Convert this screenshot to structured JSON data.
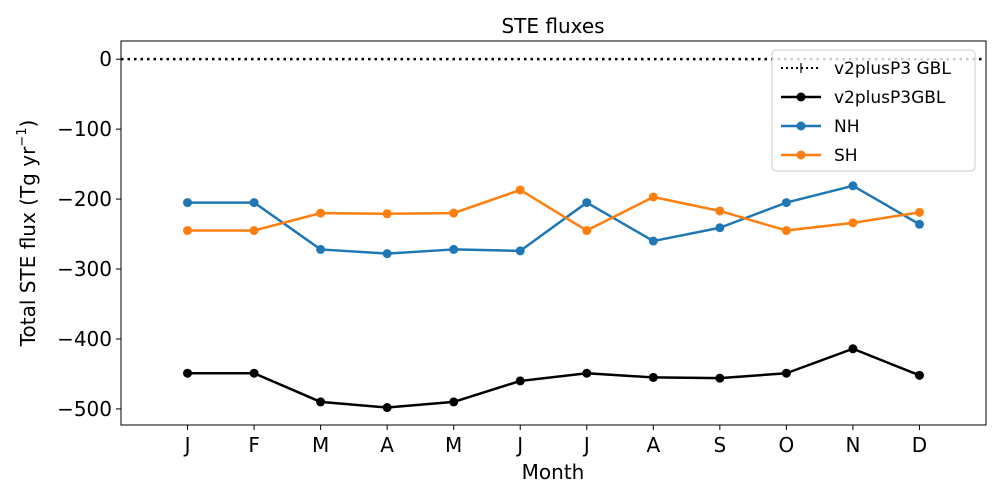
{
  "chart_data": {
    "type": "line",
    "title": "STE fluxes",
    "xlabel": "Month",
    "ylabel_prefix": "Total STE flux (Tg yr",
    "ylabel_exp": "−1",
    "ylabel_suffix": ")",
    "categories": [
      "J",
      "F",
      "M",
      "A",
      "M",
      "J",
      "J",
      "A",
      "S",
      "O",
      "N",
      "D"
    ],
    "xlim": [
      -1,
      12
    ],
    "ylim": [
      -523,
      26
    ],
    "yticks": [
      0,
      -100,
      -200,
      -300,
      -400,
      -500
    ],
    "ytick_labels": [
      "0",
      "−100",
      "−200",
      "−300",
      "−400",
      "−500"
    ],
    "grid": false,
    "legend_position": "top-right",
    "reference_line": {
      "name": "v2plusP3 GBL",
      "value": 0,
      "color": "#000000",
      "style": "dotted"
    },
    "series": [
      {
        "name": "v2plusP3GBL",
        "color": "#000000",
        "values": [
          -449,
          -449,
          -490,
          -498,
          -490,
          -460,
          -449,
          -455,
          -456,
          -449,
          -414,
          -452
        ]
      },
      {
        "name": "NH",
        "color": "#1f77b4",
        "values": [
          -205,
          -205,
          -272,
          -278,
          -272,
          -274,
          -205,
          -260,
          -241,
          -205,
          -181,
          -236
        ]
      },
      {
        "name": "SH",
        "color": "#ff7f0e",
        "values": [
          -245,
          -245,
          -220,
          -221,
          -220,
          -187,
          -245,
          -197,
          -217,
          -245,
          -234,
          -219
        ]
      }
    ]
  }
}
